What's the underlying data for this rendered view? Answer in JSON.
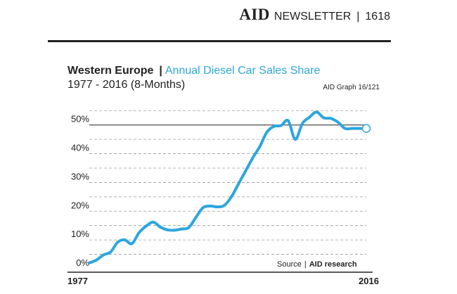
{
  "masthead": {
    "brand": "AID",
    "brand_sub": "NEWSLETTER",
    "separator": "|",
    "issue": "1618"
  },
  "chart_data": {
    "type": "line",
    "title_region": "Western Europe",
    "title_separator": "|",
    "title_metric": "Annual Diesel Car Sales Share",
    "subtitle": "1977 - 2016 (8-Months)",
    "graph_id": "AID Graph 16/121",
    "source_prefix": "Source",
    "source_separator": "|",
    "source_name": "AID research",
    "x_start_label": "1977",
    "x_end_label": "2016",
    "xlim": [
      1977,
      2016
    ],
    "ylim": [
      0,
      58
    ],
    "y_ticks": [
      {
        "value": 0,
        "label": "0%"
      },
      {
        "value": 10,
        "label": "10%"
      },
      {
        "value": 20,
        "label": "20%"
      },
      {
        "value": 30,
        "label": "30%"
      },
      {
        "value": 40,
        "label": "40%"
      },
      {
        "value": 50,
        "label": "50%"
      }
    ],
    "reference_line": 50,
    "grid": true,
    "series": [
      {
        "name": "Diesel share",
        "color": "#2ea6dc",
        "x": [
          1977,
          1978,
          1979,
          1980,
          1981,
          1982,
          1983,
          1984,
          1985,
          1986,
          1987,
          1988,
          1989,
          1990,
          1991,
          1992,
          1993,
          1994,
          1995,
          1996,
          1997,
          1998,
          1999,
          2000,
          2001,
          2002,
          2003,
          2004,
          2005,
          2006,
          2007,
          2008,
          2009,
          2010,
          2011,
          2012,
          2013,
          2014,
          2015,
          2016
        ],
        "values": [
          2,
          3,
          4.8,
          5.8,
          9.2,
          10,
          8.7,
          12.5,
          14.8,
          16.2,
          14.5,
          13.5,
          13.4,
          13.8,
          14.3,
          17.8,
          21.2,
          21.8,
          21.5,
          22,
          25,
          29.5,
          34,
          38.5,
          42.5,
          47.5,
          49.5,
          49.8,
          51.5,
          45,
          50.5,
          52.7,
          54.5,
          52.5,
          52.3,
          51,
          48.8,
          48.8,
          48.8,
          48.8
        ]
      }
    ],
    "end_marker": {
      "x": 2016,
      "value": 48.8
    }
  }
}
